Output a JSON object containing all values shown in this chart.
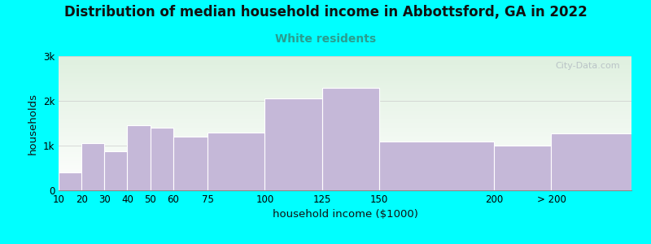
{
  "title": "Distribution of median household income in Abbottsford, GA in 2022",
  "subtitle": "White residents",
  "xlabel": "household income ($1000)",
  "ylabel": "households",
  "background_color": "#00FFFF",
  "plot_bg_gradient_top": "#dff0df",
  "plot_bg_gradient_bottom": "#ffffff",
  "bar_color": "#c5b8d8",
  "bar_edge_color": "#ffffff",
  "bin_edges": [
    10,
    20,
    30,
    40,
    50,
    60,
    75,
    100,
    125,
    150,
    200,
    225,
    260
  ],
  "values": [
    400,
    1050,
    875,
    1450,
    1400,
    1200,
    1300,
    2050,
    2300,
    1100,
    1000,
    1275
  ],
  "xtick_positions": [
    10,
    20,
    30,
    40,
    50,
    60,
    75,
    100,
    125,
    150,
    200,
    225
  ],
  "xtick_labels": [
    "10",
    "20",
    "30",
    "40",
    "50",
    "60",
    "75",
    "100",
    "125",
    "150",
    "200",
    "> 200"
  ],
  "ylim": [
    0,
    3000
  ],
  "xlim": [
    10,
    260
  ],
  "yticks": [
    0,
    1000,
    2000,
    3000
  ],
  "ytick_labels": [
    "0",
    "1k",
    "2k",
    "3k"
  ],
  "title_fontsize": 12,
  "subtitle_fontsize": 10,
  "subtitle_color": "#2a9d8f",
  "axis_label_fontsize": 9.5,
  "tick_fontsize": 8.5,
  "watermark_text": "City-Data.com"
}
